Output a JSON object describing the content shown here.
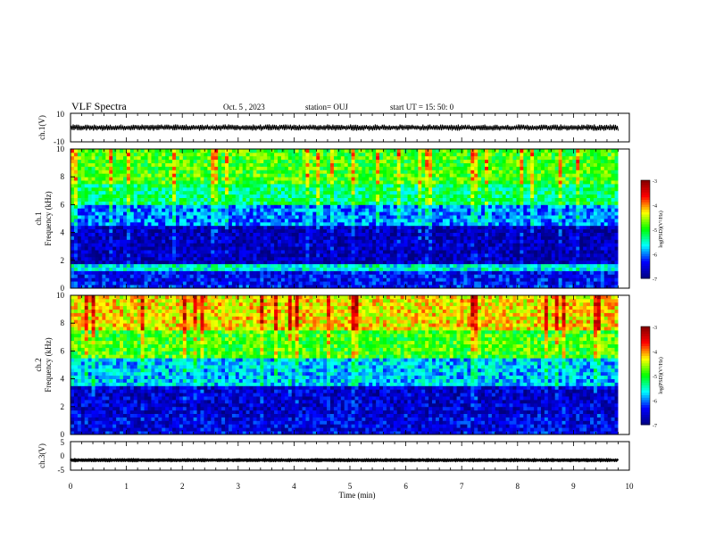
{
  "header": {
    "title": "VLF Spectra",
    "date": "Oct. 5 , 2023",
    "station": "station= OUJ",
    "start": "start  UT =   15: 50: 0"
  },
  "chart_data": [
    {
      "type": "line",
      "panel": "ch1-waveform",
      "ylabel": "ch.1(V)",
      "ylim": [
        -10,
        10
      ],
      "yticks": [
        "10",
        "-10"
      ],
      "xlim": [
        0,
        10
      ],
      "series": [
        {
          "name": "",
          "baseline": 0,
          "amplitude_range": [
            -2,
            2
          ],
          "color": "#000000"
        }
      ]
    },
    {
      "type": "heatmap",
      "panel": "ch1-spectrogram",
      "ylabel": "ch.1\nFrequency  (kHz)",
      "ylim": [
        0,
        10
      ],
      "yticks": [
        "0",
        "2",
        "4",
        "6",
        "8",
        "10"
      ],
      "xlim": [
        0,
        9.8
      ],
      "colorbar": {
        "label": "log(PSD)(V²/Hz)",
        "range": [
          -7,
          -3
        ],
        "ticks": [
          "-3",
          "-4",
          "-5",
          "-6",
          "-7"
        ]
      },
      "levels_by_frequency": [
        {
          "f": [
            0,
            0.3
          ],
          "level": -6.3
        },
        {
          "f": [
            0.3,
            1.2
          ],
          "level": -6.4
        },
        {
          "f": [
            1.2,
            1.7
          ],
          "level": -5.6
        },
        {
          "f": [
            1.7,
            4.5
          ],
          "level": -6.7
        },
        {
          "f": [
            4.5,
            6.0
          ],
          "level": -6.0
        },
        {
          "f": [
            6.0,
            7.5
          ],
          "level": -5.3
        },
        {
          "f": [
            7.5,
            10
          ],
          "level": -4.9
        }
      ]
    },
    {
      "type": "heatmap",
      "panel": "ch2-spectrogram",
      "ylabel": "ch.2\nFrequency  (kHz)",
      "ylim": [
        0,
        10
      ],
      "yticks": [
        "0",
        "2",
        "4",
        "6",
        "8",
        "10"
      ],
      "xlim": [
        0,
        9.8
      ],
      "colorbar": {
        "label": "log(PSD)(V²/Hz)",
        "range": [
          -7,
          -3
        ],
        "ticks": [
          "-3",
          "-4",
          "-5",
          "-6",
          "-7"
        ]
      },
      "levels_by_frequency": [
        {
          "f": [
            0,
            0.3
          ],
          "level": -6.4
        },
        {
          "f": [
            0.3,
            1.5
          ],
          "level": -6.5
        },
        {
          "f": [
            1.5,
            3.5
          ],
          "level": -6.6
        },
        {
          "f": [
            3.5,
            5.5
          ],
          "level": -5.8
        },
        {
          "f": [
            5.5,
            7.5
          ],
          "level": -4.9
        },
        {
          "f": [
            7.5,
            10
          ],
          "level": -4.3
        }
      ]
    },
    {
      "type": "line",
      "panel": "ch3-waveform",
      "ylabel": "ch.3(V)",
      "ylim": [
        -5,
        5
      ],
      "yticks": [
        "5",
        "0",
        "-5"
      ],
      "xlim": [
        0,
        10
      ],
      "series": [
        {
          "name": "",
          "baseline": -1.5,
          "amplitude_range": [
            -0.2,
            0.2
          ],
          "color": "#000000"
        }
      ]
    }
  ],
  "xaxis": {
    "label": "Time  (min)",
    "ticks": [
      "0",
      "1",
      "2",
      "3",
      "4",
      "5",
      "6",
      "7",
      "8",
      "9",
      "10"
    ]
  }
}
